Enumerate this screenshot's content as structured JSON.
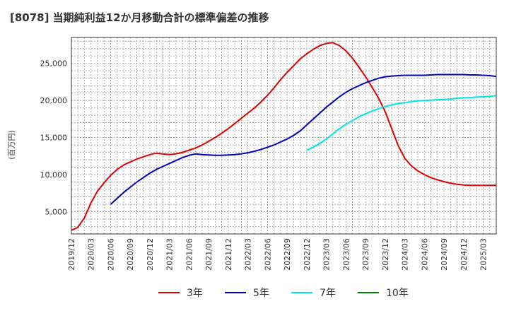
{
  "chart_data": {
    "type": "line",
    "title": "[8078]  当期純利益12か月移動合計の標準偏差の推移",
    "ylabel": "(百万円)",
    "xlabel": "",
    "ylim": [
      2000,
      28500
    ],
    "y_ticks": [
      5000,
      10000,
      15000,
      20000,
      25000
    ],
    "y_tick_labels": [
      "5,000",
      "10,000",
      "15,000",
      "20,000",
      "25,000"
    ],
    "x_tick_labels": [
      "2019/12",
      "2020/03",
      "2020/06",
      "2020/09",
      "2020/12",
      "2021/03",
      "2021/06",
      "2021/09",
      "2021/12",
      "2022/03",
      "2022/06",
      "2022/09",
      "2022/12",
      "2023/03",
      "2023/06",
      "2023/09",
      "2023/12",
      "2024/03",
      "2024/06",
      "2024/09",
      "2024/12",
      "2025/03"
    ],
    "grid": true,
    "legend_position": "bottom",
    "series": [
      {
        "name": "3年",
        "color": "#e00000",
        "x": [
          0,
          1,
          2,
          3,
          4,
          5,
          6,
          7,
          8,
          9,
          10,
          11,
          12,
          13,
          14,
          15,
          16,
          17,
          18,
          19,
          20,
          21,
          22,
          23,
          24,
          25,
          26,
          27,
          28,
          29,
          30,
          31,
          32,
          33,
          34,
          35,
          36,
          37,
          38,
          39,
          40,
          41,
          42,
          43,
          44,
          45,
          46,
          47,
          48,
          49,
          50,
          51,
          52,
          53,
          54,
          55,
          56,
          57,
          58,
          59,
          60,
          61,
          62,
          63,
          64,
          65
        ],
        "values": [
          2500,
          2900,
          4200,
          6200,
          7800,
          8900,
          9900,
          10700,
          11300,
          11700,
          12100,
          12400,
          12700,
          12900,
          12800,
          12700,
          12800,
          13000,
          13300,
          13600,
          14000,
          14500,
          15000,
          15600,
          16200,
          16900,
          17600,
          18300,
          19000,
          19800,
          20700,
          21700,
          22800,
          23800,
          24700,
          25600,
          26300,
          26900,
          27400,
          27700,
          27800,
          27400,
          26700,
          25700,
          24500,
          23200,
          21800,
          20300,
          18500,
          16200,
          13900,
          12200,
          11200,
          10500,
          10000,
          9600,
          9300,
          9050,
          8850,
          8700,
          8600,
          8550,
          8550,
          8550,
          8550,
          8550
        ]
      },
      {
        "name": "5年",
        "color": "#0000c0",
        "x": [
          6,
          7,
          8,
          9,
          10,
          11,
          12,
          13,
          14,
          15,
          16,
          17,
          18,
          19,
          20,
          21,
          22,
          23,
          24,
          25,
          26,
          27,
          28,
          29,
          30,
          31,
          32,
          33,
          34,
          35,
          36,
          37,
          38,
          39,
          40,
          41,
          42,
          43,
          44,
          45,
          46,
          47,
          48,
          49,
          50,
          51,
          52,
          53,
          54,
          55,
          56,
          57,
          58,
          59,
          60,
          61,
          62,
          63,
          64,
          65
        ],
        "values": [
          6000,
          6800,
          7600,
          8300,
          9000,
          9600,
          10200,
          10700,
          11100,
          11500,
          11900,
          12300,
          12600,
          12800,
          12700,
          12650,
          12600,
          12600,
          12650,
          12700,
          12800,
          12950,
          13150,
          13400,
          13700,
          14000,
          14400,
          14800,
          15300,
          15900,
          16700,
          17500,
          18300,
          19100,
          19800,
          20500,
          21100,
          21600,
          22000,
          22400,
          22700,
          23000,
          23200,
          23300,
          23350,
          23400,
          23400,
          23400,
          23400,
          23450,
          23500,
          23500,
          23500,
          23500,
          23500,
          23450,
          23450,
          23400,
          23350,
          23250
        ]
      },
      {
        "name": "7年",
        "color": "#00e5e5",
        "x": [
          36,
          37,
          38,
          39,
          40,
          41,
          42,
          43,
          44,
          45,
          46,
          47,
          48,
          49,
          50,
          51,
          52,
          53,
          54,
          55,
          56,
          57,
          58,
          59,
          60,
          61,
          62,
          63,
          64,
          65
        ],
        "values": [
          13300,
          13700,
          14200,
          14800,
          15500,
          16200,
          16800,
          17300,
          17800,
          18200,
          18600,
          18900,
          19200,
          19400,
          19600,
          19700,
          19850,
          19950,
          20000,
          20050,
          20100,
          20150,
          20200,
          20300,
          20350,
          20400,
          20450,
          20500,
          20550,
          20650
        ]
      },
      {
        "name": "10年",
        "color": "#008000",
        "x": [],
        "values": []
      }
    ]
  }
}
